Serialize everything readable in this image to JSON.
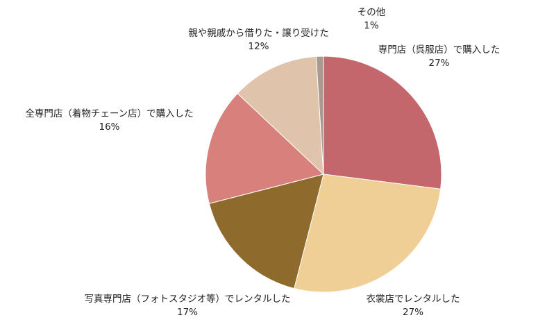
{
  "chart_data": {
    "type": "pie",
    "start_angle_deg": 0,
    "direction": "clockwise",
    "slices": [
      {
        "label": "専門店（呉服店）で購入した",
        "value": 27,
        "value_label": "27%",
        "color": "#c4676c"
      },
      {
        "label": "衣裳店でレンタルした",
        "value": 27,
        "value_label": "27%",
        "color": "#efcf96"
      },
      {
        "label": "写真専門店（フォトスタジオ等）でレンタルした",
        "value": 17,
        "value_label": "17%",
        "color": "#8e6a2c"
      },
      {
        "label": "全専門店（着物チェーン店）で購入した",
        "value": 16,
        "value_label": "16%",
        "color": "#d8817c"
      },
      {
        "label": "親や親戚から借りた・譲り受けた",
        "value": 12,
        "value_label": "12%",
        "color": "#dfc3ab"
      },
      {
        "label": "その他",
        "value": 1,
        "value_label": "1%",
        "color": "#aa9a8e"
      }
    ]
  }
}
